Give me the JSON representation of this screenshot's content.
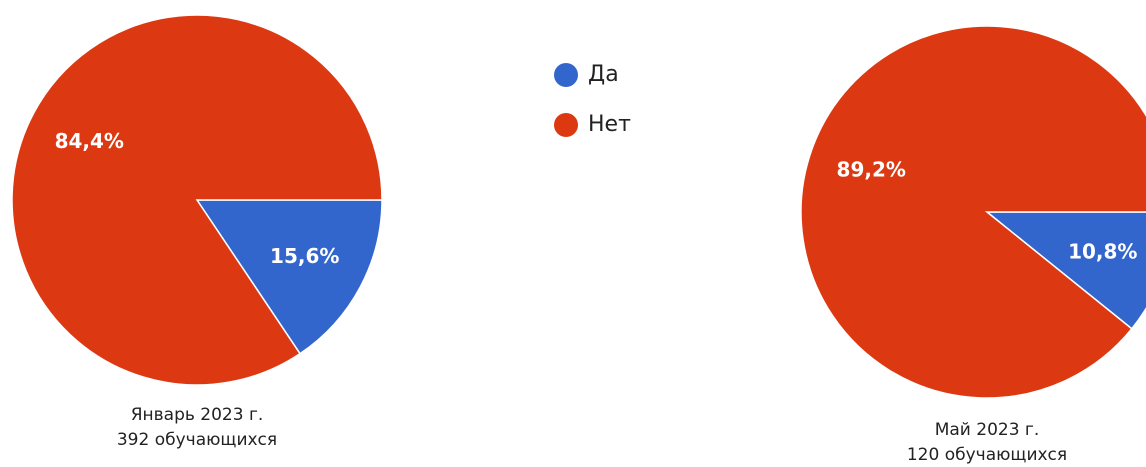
{
  "chart_data": [
    {
      "type": "pie",
      "title": "Январь 2023 г.",
      "subtitle": "392 обучающихся",
      "categories": [
        "Да",
        "Нет"
      ],
      "values": [
        15.6,
        84.4
      ],
      "value_labels": [
        "15,6%",
        "84,4%"
      ],
      "colors": [
        "#3366cc",
        "#dc3912"
      ]
    },
    {
      "type": "pie",
      "title": "Май 2023 г.",
      "subtitle": "120 обучающихся",
      "categories": [
        "Да",
        "Нет"
      ],
      "values": [
        10.8,
        89.2
      ],
      "value_labels": [
        "10,8%",
        "89,2%"
      ],
      "colors": [
        "#3366cc",
        "#dc3912"
      ]
    }
  ]
}
